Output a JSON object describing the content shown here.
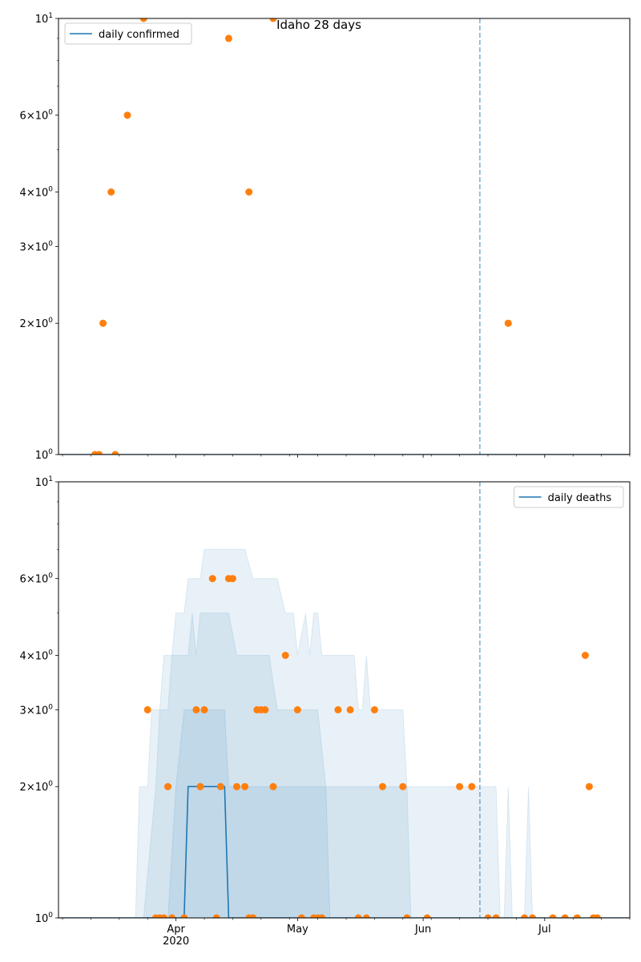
{
  "figure_title": "Idaho 28 days",
  "colors": {
    "line": "#1f77b4",
    "points": "#ff7f0e",
    "band": "#1f77b4",
    "vline": "#1f77b4"
  },
  "chart_data": [
    {
      "type": "scatter",
      "title": "Idaho 28 days",
      "legend": {
        "label": "daily confirmed",
        "placement": "top-left"
      },
      "yscale": "log",
      "ylim": [
        1,
        10
      ],
      "xlim": [
        "2020-03-03",
        "2020-07-22"
      ],
      "ytick_labels": [
        "10^0",
        "2×10^0",
        "3×10^0",
        "4×10^0",
        "6×10^0",
        "10^1"
      ],
      "xtick_labels": [
        "Apr\n2020",
        "May",
        "Jun",
        "Jul"
      ],
      "vline_date": "2020-06-15",
      "line": [
        [
          "2020-03-03",
          1
        ],
        [
          "2020-07-22",
          1
        ]
      ],
      "points": [
        [
          "2020-03-12",
          1
        ],
        [
          "2020-03-13",
          1
        ],
        [
          "2020-03-14",
          2
        ],
        [
          "2020-03-16",
          4
        ],
        [
          "2020-03-17",
          1
        ],
        [
          "2020-03-20",
          6
        ],
        [
          "2020-03-24",
          10
        ],
        [
          "2020-04-14",
          9
        ],
        [
          "2020-04-19",
          4
        ],
        [
          "2020-04-25",
          10
        ],
        [
          "2020-06-22",
          2
        ]
      ]
    },
    {
      "type": "scatter",
      "legend": {
        "label": "daily deaths",
        "placement": "top-right"
      },
      "yscale": "log",
      "ylim": [
        1,
        10
      ],
      "xlim": [
        "2020-03-03",
        "2020-07-22"
      ],
      "ytick_labels": [
        "10^0",
        "2×10^0",
        "3×10^0",
        "4×10^0",
        "6×10^0",
        "10^1"
      ],
      "xtick_labels": [
        "Apr\n2020",
        "May",
        "Jun",
        "Jul"
      ],
      "vline_date": "2020-06-15",
      "line": [
        [
          "2020-03-03",
          1
        ],
        [
          "2020-04-03",
          1
        ],
        [
          "2020-04-04",
          2
        ],
        [
          "2020-04-13",
          2
        ],
        [
          "2020-04-14",
          1
        ],
        [
          "2020-07-22",
          1
        ]
      ],
      "bands": [
        {
          "lower": 1,
          "upper": [
            [
              "2020-03-22",
              1
            ],
            [
              "2020-03-23",
              2
            ],
            [
              "2020-03-25",
              2
            ],
            [
              "2020-03-26",
              3
            ],
            [
              "2020-03-28",
              3
            ],
            [
              "2020-03-29",
              4
            ],
            [
              "2020-03-31",
              4
            ],
            [
              "2020-04-01",
              5
            ],
            [
              "2020-04-03",
              5
            ],
            [
              "2020-04-04",
              6
            ],
            [
              "2020-04-05",
              6
            ],
            [
              "2020-04-07",
              6
            ],
            [
              "2020-04-08",
              7
            ],
            [
              "2020-04-18",
              7
            ],
            [
              "2020-04-20",
              6
            ],
            [
              "2020-04-26",
              6
            ],
            [
              "2020-04-28",
              5
            ],
            [
              "2020-04-30",
              5
            ],
            [
              "2020-05-01",
              4
            ],
            [
              "2020-05-03",
              5
            ],
            [
              "2020-05-04",
              4
            ],
            [
              "2020-05-05",
              5
            ],
            [
              "2020-05-06",
              5
            ],
            [
              "2020-05-07",
              4
            ],
            [
              "2020-05-15",
              4
            ],
            [
              "2020-05-16",
              3
            ],
            [
              "2020-05-17",
              3
            ],
            [
              "2020-05-18",
              4
            ],
            [
              "2020-05-19",
              3
            ],
            [
              "2020-05-26",
              3
            ],
            [
              "2020-05-27",
              3
            ],
            [
              "2020-05-28",
              2
            ],
            [
              "2020-05-29",
              2
            ],
            [
              "2020-06-19",
              2
            ],
            [
              "2020-06-20",
              1
            ],
            [
              "2020-06-21",
              1
            ],
            [
              "2020-06-22",
              2
            ],
            [
              "2020-06-23",
              1
            ],
            [
              "2020-06-26",
              1
            ],
            [
              "2020-06-27",
              2
            ],
            [
              "2020-06-28",
              1
            ]
          ]
        },
        {
          "lower": 1,
          "upper": [
            [
              "2020-03-24",
              1
            ],
            [
              "2020-03-27",
              2
            ],
            [
              "2020-03-28",
              3
            ],
            [
              "2020-03-30",
              3
            ],
            [
              "2020-03-31",
              4
            ],
            [
              "2020-04-04",
              4
            ],
            [
              "2020-04-05",
              5
            ],
            [
              "2020-04-06",
              4
            ],
            [
              "2020-04-07",
              5
            ],
            [
              "2020-04-14",
              5
            ],
            [
              "2020-04-16",
              4
            ],
            [
              "2020-04-24",
              4
            ],
            [
              "2020-04-26",
              3
            ],
            [
              "2020-05-06",
              3
            ],
            [
              "2020-05-08",
              2
            ],
            [
              "2020-05-28",
              2
            ],
            [
              "2020-05-29",
              1
            ]
          ]
        },
        {
          "lower": 1,
          "upper": [
            [
              "2020-03-30",
              1
            ],
            [
              "2020-04-01",
              2
            ],
            [
              "2020-04-03",
              3
            ],
            [
              "2020-04-13",
              3
            ],
            [
              "2020-04-14",
              2
            ],
            [
              "2020-05-08",
              2
            ],
            [
              "2020-05-09",
              1
            ]
          ]
        }
      ],
      "points": [
        [
          "2020-03-25",
          3
        ],
        [
          "2020-03-27",
          1
        ],
        [
          "2020-03-28",
          1
        ],
        [
          "2020-03-29",
          1
        ],
        [
          "2020-03-30",
          2
        ],
        [
          "2020-03-31",
          1
        ],
        [
          "2020-04-03",
          1
        ],
        [
          "2020-04-06",
          3
        ],
        [
          "2020-04-07",
          2
        ],
        [
          "2020-04-08",
          3
        ],
        [
          "2020-04-10",
          6
        ],
        [
          "2020-04-11",
          1
        ],
        [
          "2020-04-12",
          2
        ],
        [
          "2020-04-14",
          6
        ],
        [
          "2020-04-15",
          6
        ],
        [
          "2020-04-16",
          2
        ],
        [
          "2020-04-18",
          2
        ],
        [
          "2020-04-19",
          1
        ],
        [
          "2020-04-20",
          1
        ],
        [
          "2020-04-21",
          3
        ],
        [
          "2020-04-22",
          3
        ],
        [
          "2020-04-23",
          3
        ],
        [
          "2020-04-25",
          2
        ],
        [
          "2020-04-28",
          4
        ],
        [
          "2020-05-01",
          3
        ],
        [
          "2020-05-02",
          1
        ],
        [
          "2020-05-05",
          1
        ],
        [
          "2020-05-06",
          1
        ],
        [
          "2020-05-07",
          1
        ],
        [
          "2020-05-11",
          3
        ],
        [
          "2020-05-14",
          3
        ],
        [
          "2020-05-16",
          1
        ],
        [
          "2020-05-18",
          1
        ],
        [
          "2020-05-20",
          3
        ],
        [
          "2020-05-22",
          2
        ],
        [
          "2020-05-27",
          2
        ],
        [
          "2020-05-28",
          1
        ],
        [
          "2020-06-02",
          1
        ],
        [
          "2020-06-10",
          2
        ],
        [
          "2020-06-13",
          2
        ],
        [
          "2020-06-17",
          1
        ],
        [
          "2020-06-19",
          1
        ],
        [
          "2020-06-26",
          1
        ],
        [
          "2020-06-28",
          1
        ],
        [
          "2020-07-03",
          1
        ],
        [
          "2020-07-06",
          1
        ],
        [
          "2020-07-09",
          1
        ],
        [
          "2020-07-11",
          4
        ],
        [
          "2020-07-12",
          2
        ],
        [
          "2020-07-13",
          1
        ],
        [
          "2020-07-14",
          1
        ]
      ]
    }
  ]
}
